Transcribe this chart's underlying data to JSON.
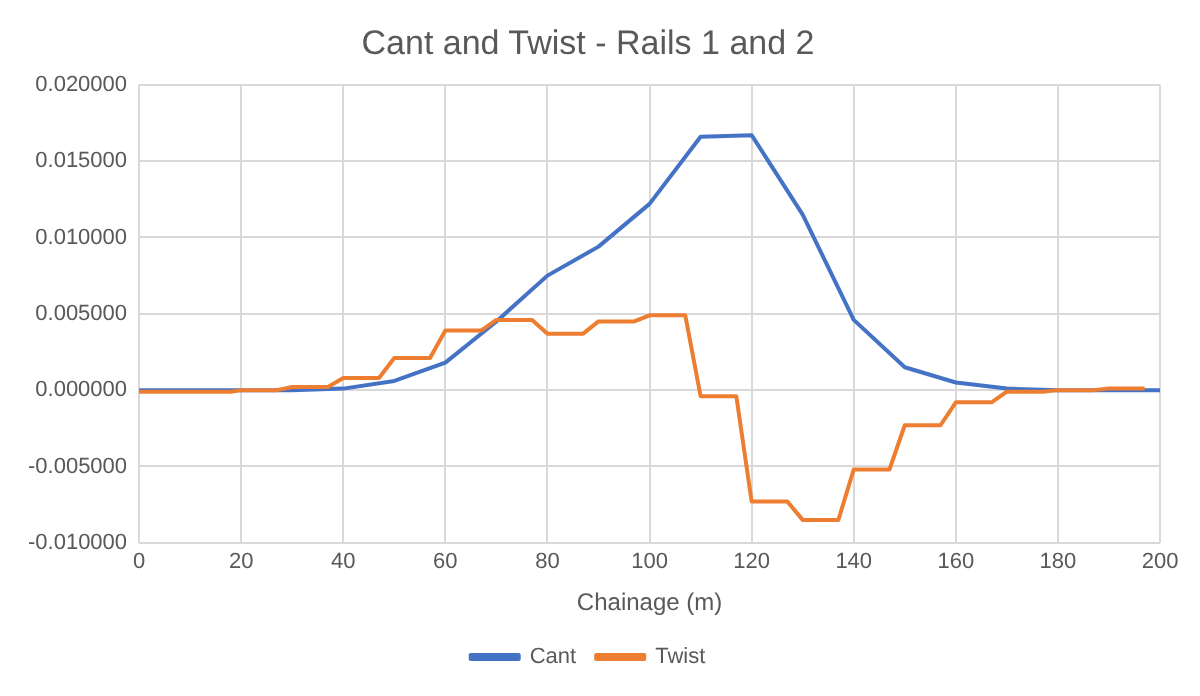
{
  "chart_data": {
    "type": "line",
    "title": "Cant and Twist - Rails 1 and 2",
    "xlabel": "Chainage (m)",
    "xlim": [
      0,
      200
    ],
    "xticks": [
      0,
      20,
      40,
      60,
      80,
      100,
      120,
      140,
      160,
      180,
      200
    ],
    "ylim": [
      -0.01,
      0.02
    ],
    "yticks": [
      {
        "value": -0.01,
        "label": "-0.010000"
      },
      {
        "value": -0.005,
        "label": "-0.005000"
      },
      {
        "value": 0,
        "label": "0.000000"
      },
      {
        "value": 0.005,
        "label": "0.005000"
      },
      {
        "value": 0.01,
        "label": "0.010000"
      },
      {
        "value": 0.015,
        "label": "0.015000"
      },
      {
        "value": 0.02,
        "label": "0.020000"
      }
    ],
    "grid": true,
    "legend": "bottom",
    "marker": "none",
    "line_style": "solid",
    "series": [
      {
        "name": "Cant",
        "color": "#4472c4",
        "x": [
          0,
          10,
          20,
          30,
          40,
          50,
          60,
          70,
          80,
          90,
          100,
          110,
          120,
          130,
          140,
          150,
          160,
          170,
          180,
          190,
          200
        ],
        "values": [
          0,
          0,
          0,
          0,
          0.0001,
          0.0006,
          0.0018,
          0.0045,
          0.0075,
          0.0094,
          0.0122,
          0.0166,
          0.0167,
          0.0115,
          0.0046,
          0.0015,
          0.0005,
          0.0001,
          0,
          0,
          0
        ]
      },
      {
        "name": "Twist",
        "color": "#ed7d31",
        "x": [
          0,
          18,
          20,
          27,
          30,
          37,
          40,
          47,
          50,
          57,
          60,
          67,
          70,
          77,
          80,
          87,
          90,
          97,
          100,
          107,
          110,
          117,
          120,
          127,
          130,
          137,
          140,
          147,
          150,
          157,
          160,
          167,
          170,
          177,
          180,
          187,
          190,
          197
        ],
        "values": [
          -0.0001,
          -0.0001,
          0,
          0,
          0.0002,
          0.0002,
          0.0008,
          0.0008,
          0.0021,
          0.0021,
          0.0039,
          0.0039,
          0.0046,
          0.0046,
          0.0037,
          0.0037,
          0.0045,
          0.0045,
          0.0049,
          0.0049,
          -0.0004,
          -0.0004,
          -0.0073,
          -0.0073,
          -0.0085,
          -0.0085,
          -0.0052,
          -0.0052,
          -0.0023,
          -0.0023,
          -0.0008,
          -0.0008,
          -0.0001,
          -0.0001,
          0,
          0,
          0.0001,
          0.0001
        ]
      }
    ]
  }
}
